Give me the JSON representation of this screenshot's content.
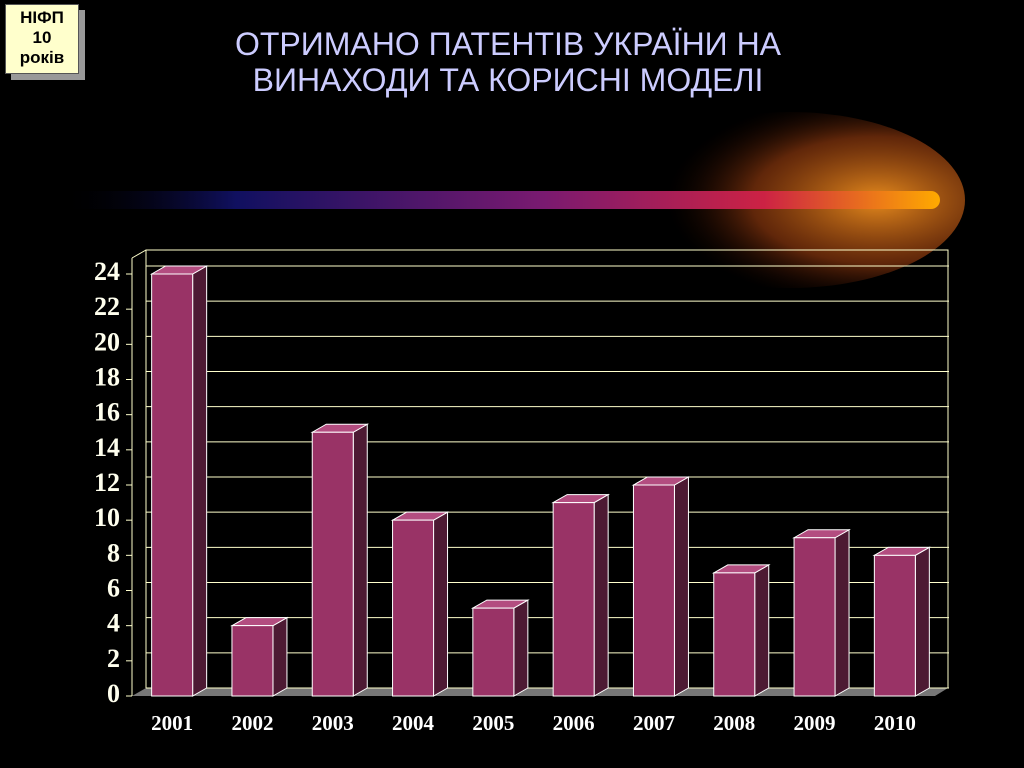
{
  "chart_data": {
    "type": "bar3d",
    "badge": [
      "НІФП",
      "10",
      "років"
    ],
    "title": "ОТРИМАНО ПАТЕНТІВ УКРАЇНИ НА ВИНАХОДИ ТА КОРИСНІ МОДЕЛІ",
    "categories": [
      "2001",
      "2002",
      "2003",
      "2004",
      "2005",
      "2006",
      "2007",
      "2008",
      "2009",
      "2010"
    ],
    "values": [
      24,
      4,
      15,
      10,
      5,
      11,
      12,
      7,
      9,
      8
    ],
    "color": "#993366",
    "ylim": [
      0,
      24
    ],
    "yticks": [
      0,
      2,
      4,
      6,
      8,
      10,
      12,
      14,
      16,
      18,
      20,
      22,
      24
    ],
    "grid": true
  }
}
